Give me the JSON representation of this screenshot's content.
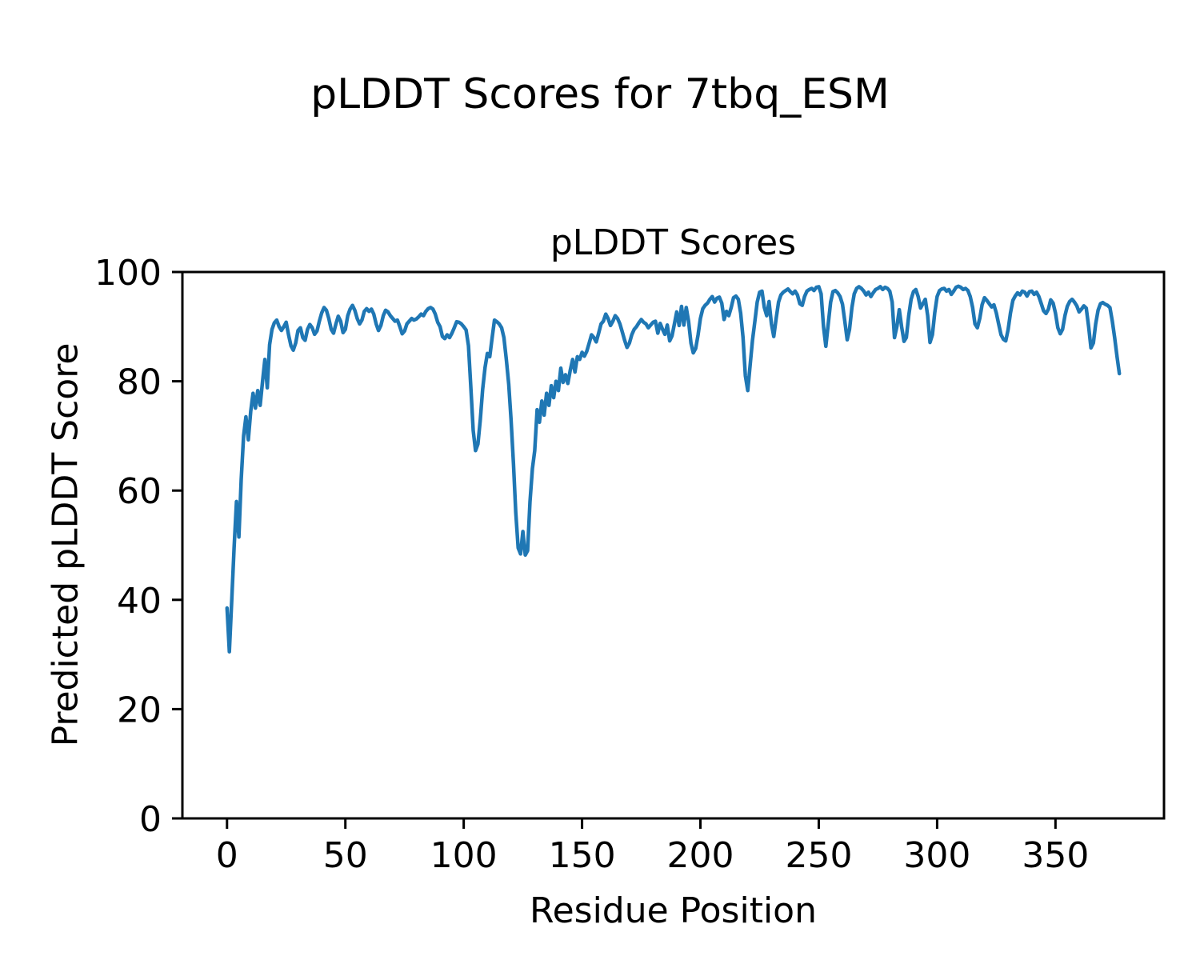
{
  "figure": {
    "title": "pLDDT Scores for 7tbq_ESM",
    "background": "#ffffff",
    "text_color": "#000000"
  },
  "chart_data": {
    "type": "line",
    "title": "pLDDT Scores",
    "xlabel": "Residue Position",
    "ylabel": "Predicted pLDDT Score",
    "xlim": [
      -18.85,
      395.85
    ],
    "ylim": [
      0,
      100
    ],
    "x_ticks": [
      0,
      50,
      100,
      150,
      200,
      250,
      300,
      350
    ],
    "x_tick_labels": [
      "0",
      "50",
      "100",
      "150",
      "200",
      "250",
      "300",
      "350"
    ],
    "y_ticks": [
      0,
      20,
      40,
      60,
      80,
      100
    ],
    "y_tick_labels": [
      "0",
      "20",
      "40",
      "60",
      "80",
      "100"
    ],
    "grid": false,
    "legend": false,
    "spine_color": "#000000",
    "series": [
      {
        "name": "pLDDT",
        "color": "#1f77b4",
        "line_width": 4.5,
        "x_start": 0,
        "x_step": 1,
        "values": [
          38.5,
          30.5,
          40,
          49.5,
          58,
          51.5,
          62,
          70,
          73.5,
          69.3,
          74.5,
          77.8,
          75.1,
          78.3,
          75.6,
          80,
          84,
          78.8,
          86.7,
          89.5,
          90.7,
          91.2,
          90,
          89.3,
          90,
          90.8,
          88.5,
          86.5,
          85.7,
          87,
          89.3,
          89.8,
          88,
          87.5,
          89.5,
          90.4,
          89.8,
          88.6,
          89.2,
          91,
          92.5,
          93.5,
          93,
          91.5,
          89.5,
          88.8,
          90.5,
          91.9,
          91,
          88.9,
          89.5,
          92,
          93.2,
          93.9,
          93,
          91.5,
          90.5,
          91.2,
          92.8,
          93.3,
          92.8,
          93.2,
          92.3,
          90.5,
          89.3,
          90.2,
          92,
          93,
          92.7,
          92,
          91.5,
          91,
          91.2,
          90,
          88.7,
          89.2,
          90.5,
          91,
          91.5,
          91.2,
          91.4,
          91.8,
          92.3,
          92,
          92.8,
          93.3,
          93.5,
          93.2,
          92.3,
          90.8,
          90,
          88.2,
          87.8,
          88.5,
          88,
          88.8,
          89.8,
          90.9,
          90.8,
          90.5,
          90,
          89.4,
          86.5,
          79,
          71,
          67.3,
          68.5,
          73,
          78.5,
          82.5,
          85.1,
          84.5,
          88,
          91.2,
          90.9,
          90.5,
          89.8,
          88,
          84,
          79.5,
          73,
          65,
          56,
          49.5,
          48.4,
          52.5,
          48.2,
          49,
          58,
          64,
          67.3,
          74.8,
          72.5,
          76.4,
          73.8,
          77.8,
          75.6,
          79.2,
          77,
          80,
          78.3,
          82.4,
          79.8,
          81.2,
          79.6,
          82,
          84,
          81.7,
          84.5,
          84,
          85.3,
          84.6,
          85.5,
          87,
          88.5,
          88,
          87.2,
          88.8,
          90.5,
          91,
          92.3,
          91.5,
          90.2,
          91,
          92,
          91.5,
          90.5,
          89,
          87.5,
          86.2,
          87,
          88.5,
          89.5,
          90,
          90.7,
          91.3,
          90.8,
          90.5,
          89.8,
          90.3,
          90.8,
          91,
          88.8,
          90.6,
          89.5,
          88.6,
          90.3,
          87.4,
          88.3,
          90.5,
          92.7,
          90.2,
          93.7,
          90.3,
          93.5,
          91,
          87,
          85.2,
          86,
          88.5,
          91.5,
          93.3,
          93.9,
          94.3,
          95,
          95.5,
          94.5,
          95.2,
          95.4,
          94.3,
          91.3,
          92.8,
          92,
          93.5,
          95.3,
          95.6,
          95,
          92.5,
          88,
          81,
          78.3,
          83,
          87.5,
          91,
          94.5,
          96.3,
          96.5,
          93.5,
          92,
          94.6,
          90.5,
          88.2,
          91.5,
          94.5,
          95.8,
          96.3,
          96.6,
          96.9,
          96.4,
          96,
          96.5,
          95.8,
          94.2,
          93.9,
          95.5,
          96.5,
          96.8,
          97,
          96.6,
          97.2,
          97.3,
          96,
          90,
          86.4,
          90.5,
          94.5,
          96.4,
          96.6,
          96.2,
          95.5,
          94.1,
          91,
          87.6,
          89.5,
          93.5,
          96,
          97,
          97.3,
          97,
          96.5,
          95.8,
          96.3,
          95.5,
          96.2,
          96.8,
          97,
          97.3,
          96.8,
          97.2,
          97,
          96.5,
          94.5,
          88,
          90,
          93.1,
          90,
          87.3,
          88,
          92,
          95,
          96.4,
          96.8,
          95.5,
          93.4,
          94.2,
          95,
          92,
          87.1,
          88.5,
          92.5,
          95.5,
          96.6,
          96.9,
          97,
          96.5,
          96.8,
          95.9,
          96.5,
          97.2,
          97.4,
          97.2,
          96.8,
          97,
          96.6,
          95.5,
          93.5,
          90.5,
          89.8,
          91.5,
          94,
          95.3,
          94.8,
          94.2,
          93.6,
          94,
          92.5,
          90.5,
          88.5,
          87.7,
          87.4,
          89.5,
          92.5,
          94.8,
          95.6,
          96.2,
          95.8,
          96.5,
          96.3,
          95.6,
          96.4,
          96.5,
          95.9,
          96.3,
          95.5,
          94.2,
          92.9,
          92.4,
          93.2,
          94.9,
          94.3,
          92.5,
          89.8,
          88.7,
          89.5,
          92,
          93.7,
          94.6,
          95,
          94.5,
          93.8,
          92.7,
          93.2,
          93.8,
          93.4,
          90,
          86.1,
          87,
          90.5,
          93,
          94.2,
          94.4,
          94.1,
          93.9,
          93.5,
          91,
          88,
          84.5,
          81.4
        ]
      }
    ]
  }
}
